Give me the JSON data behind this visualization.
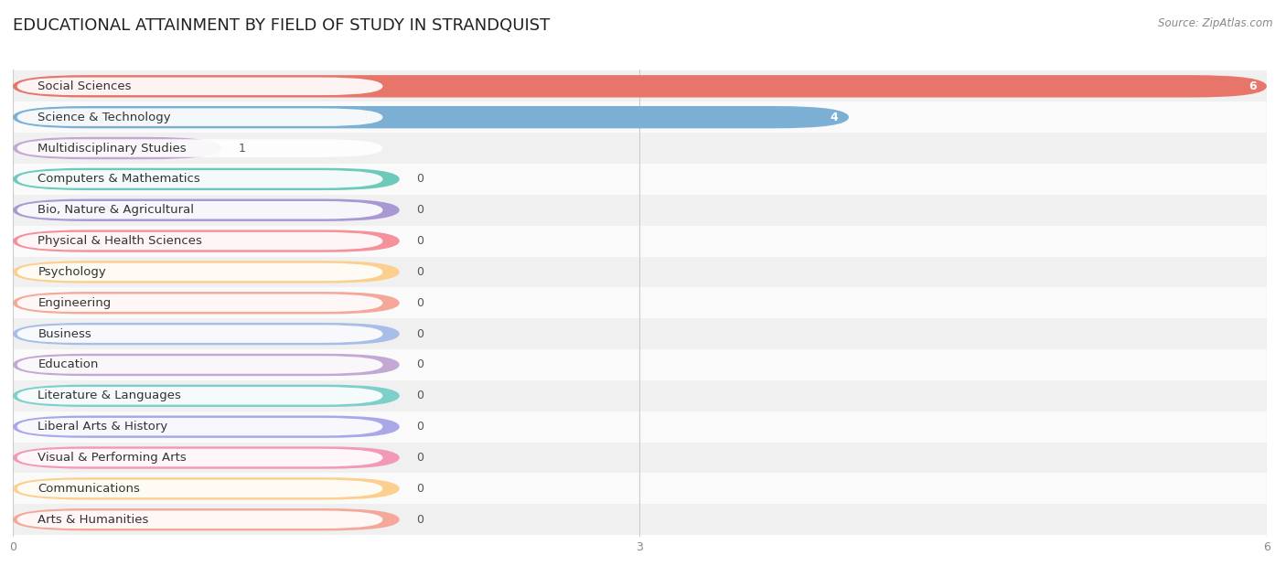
{
  "title": "EDUCATIONAL ATTAINMENT BY FIELD OF STUDY IN STRANDQUIST",
  "source": "Source: ZipAtlas.com",
  "categories": [
    "Social Sciences",
    "Science & Technology",
    "Multidisciplinary Studies",
    "Computers & Mathematics",
    "Bio, Nature & Agricultural",
    "Physical & Health Sciences",
    "Psychology",
    "Engineering",
    "Business",
    "Education",
    "Literature & Languages",
    "Liberal Arts & History",
    "Visual & Performing Arts",
    "Communications",
    "Arts & Humanities"
  ],
  "values": [
    6,
    4,
    1,
    0,
    0,
    0,
    0,
    0,
    0,
    0,
    0,
    0,
    0,
    0,
    0
  ],
  "bar_colors": [
    "#E8756A",
    "#7BAFD4",
    "#C4A8D4",
    "#6DCABB",
    "#A899D4",
    "#F4919A",
    "#FCCF8E",
    "#F4A899",
    "#A8BEE8",
    "#C4A8D4",
    "#7DCFCA",
    "#A8A8E8",
    "#F498B8",
    "#FCCF8E",
    "#F4A899"
  ],
  "bg_colors": [
    "#F0F0F0",
    "#FAFAFA",
    "#F0F0F0",
    "#FAFAFA",
    "#F0F0F0",
    "#FAFAFA",
    "#F0F0F0",
    "#FAFAFA",
    "#F0F0F0",
    "#FAFAFA",
    "#F0F0F0",
    "#FAFAFA",
    "#F0F0F0",
    "#FAFAFA",
    "#F0F0F0"
  ],
  "xlim": [
    0,
    6
  ],
  "xticks": [
    0,
    3,
    6
  ],
  "zero_bar_width": 1.85,
  "title_fontsize": 13,
  "label_fontsize": 9.5,
  "value_fontsize": 9
}
